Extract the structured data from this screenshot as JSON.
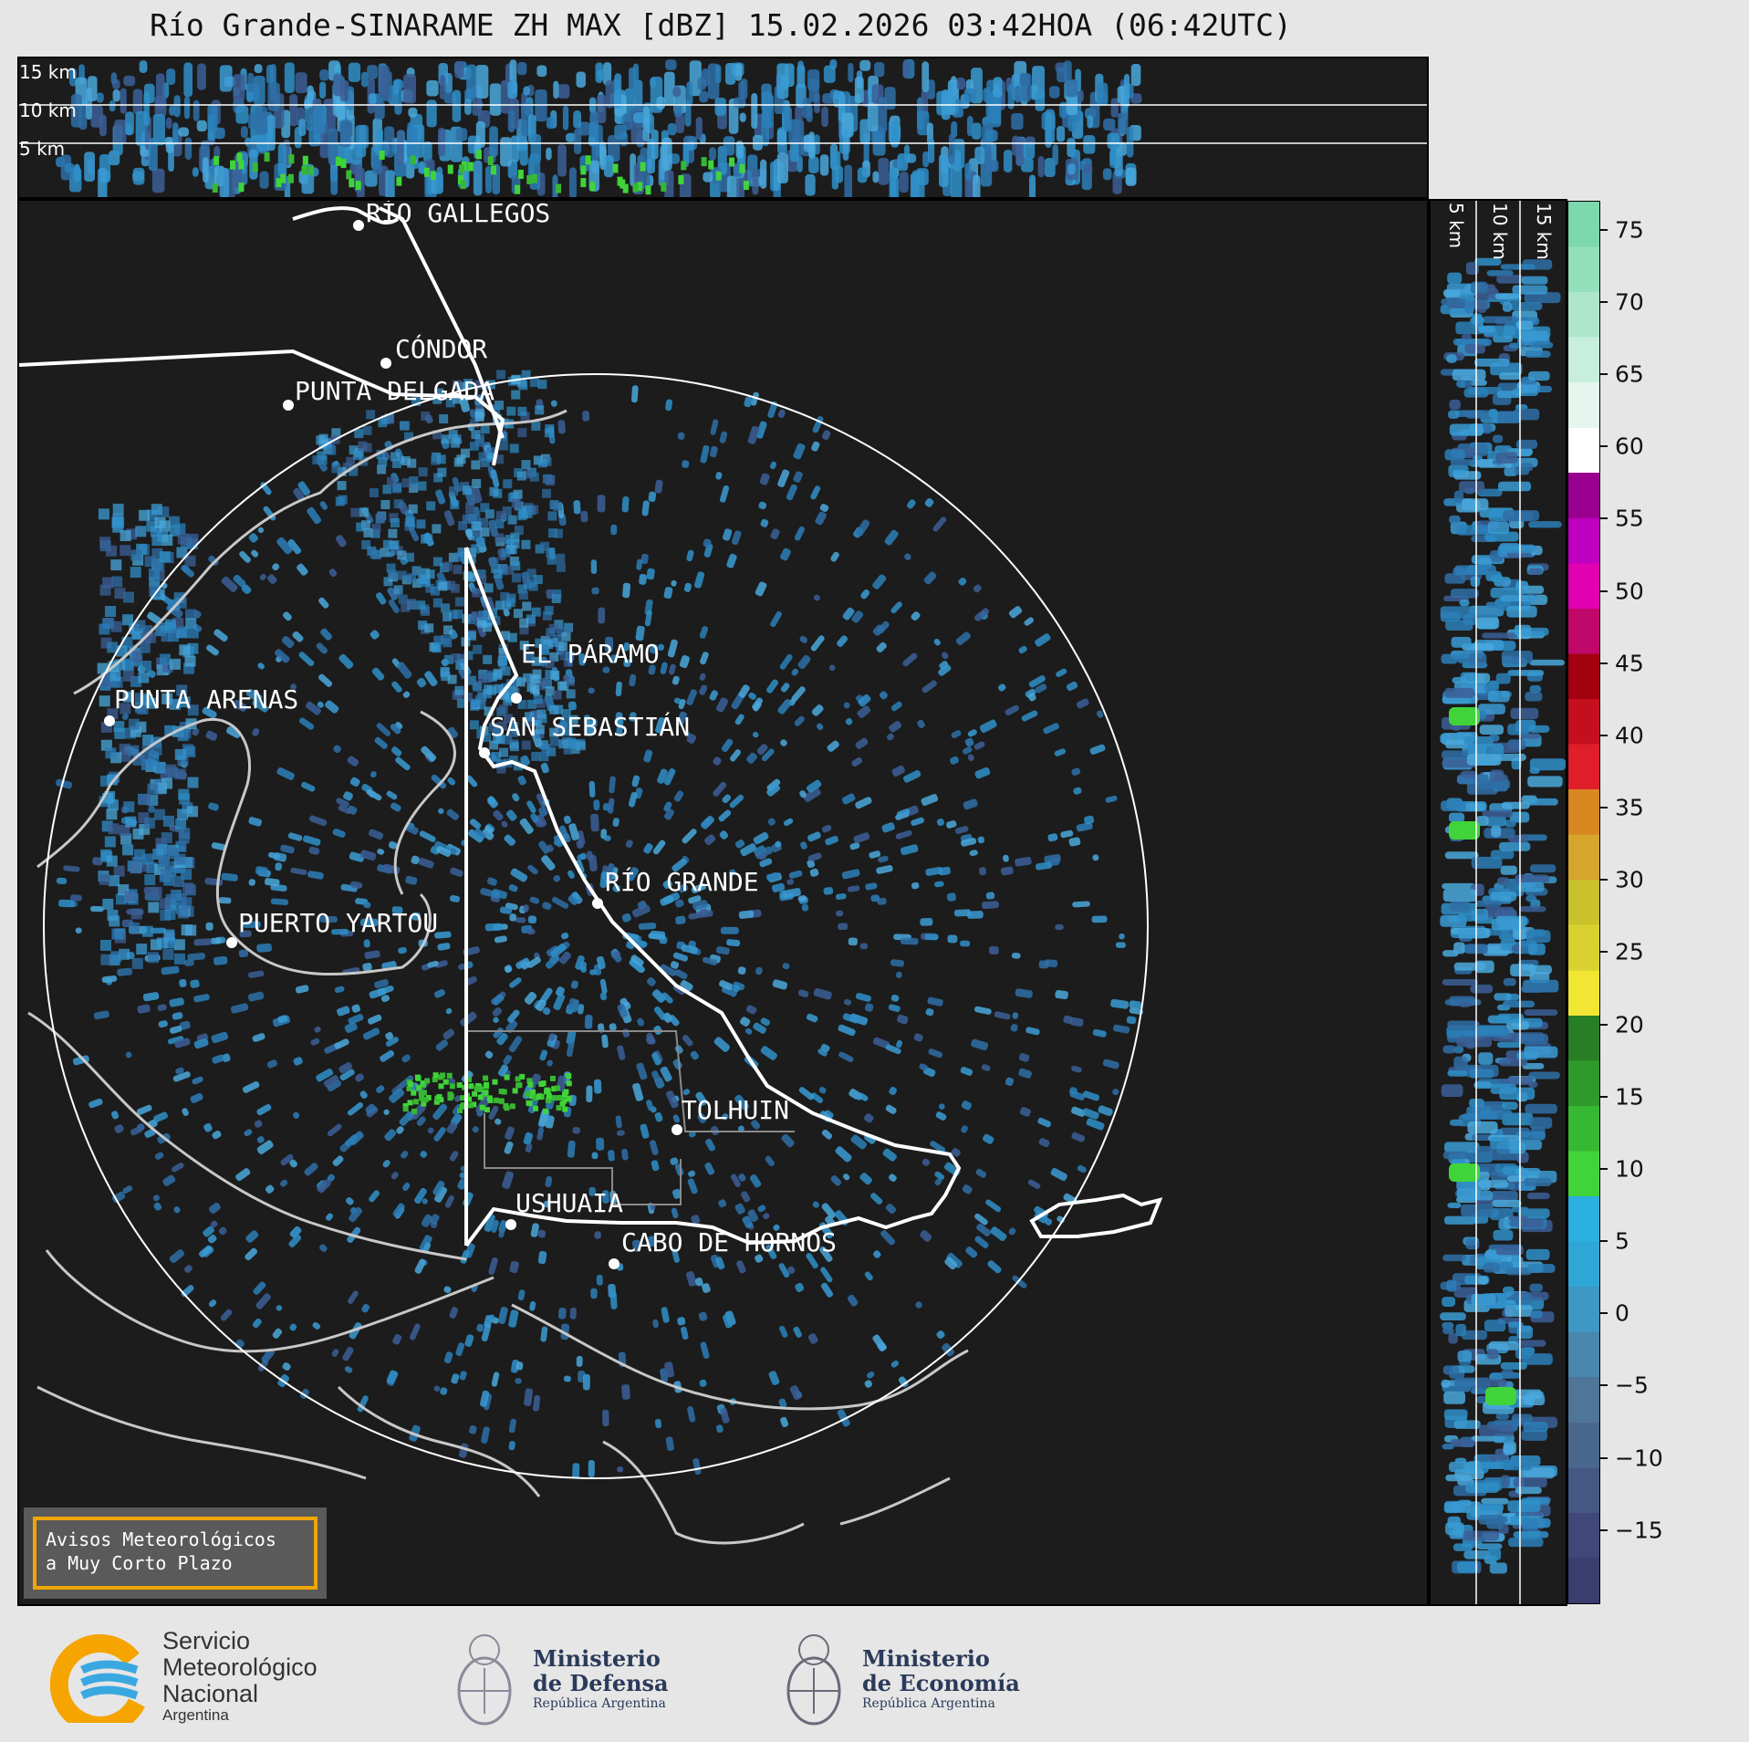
{
  "title": "Río Grande-SINARAME ZH MAX [dBZ] 15.02.2026 03:42HOA (06:42UTC)",
  "top_panel": {
    "altitude_labels": [
      "15 km",
      "10 km",
      "5 km"
    ]
  },
  "side_panel": {
    "altitude_labels": [
      "5 km",
      "10 km",
      "15 km"
    ]
  },
  "colorbar": {
    "unit": "dBZ",
    "ticks": [
      "75",
      "70",
      "65",
      "60",
      "55",
      "50",
      "45",
      "40",
      "35",
      "30",
      "25",
      "20",
      "15",
      "10",
      "5",
      "0",
      "−5",
      "−10",
      "−15"
    ],
    "range": [
      -20,
      77
    ],
    "colors": [
      "#3a3d6e",
      "#3f4878",
      "#455883",
      "#4a678e",
      "#4f7598",
      "#4a86ad",
      "#3f97c4",
      "#2fa7d6",
      "#2bb0e0",
      "#40d43a",
      "#37b832",
      "#2f9a2b",
      "#287e25",
      "#f0e633",
      "#d9d12f",
      "#c9c22a",
      "#d6a52b",
      "#d78821",
      "#e01e2a",
      "#c40f1f",
      "#a30010",
      "#c0086a",
      "#e000b0",
      "#c000c0",
      "#9a0090",
      "#ffffff",
      "#e4f6ee",
      "#c8eedd",
      "#aee6cc",
      "#94dfbc",
      "#7cd8ad"
    ]
  },
  "cities": [
    {
      "name": "RÍO GALLEGOS"
    },
    {
      "name": "CÓNDOR"
    },
    {
      "name": "PUNTA DELGADA"
    },
    {
      "name": "EL PÁRAMO"
    },
    {
      "name": "SAN SEBASTIÁN"
    },
    {
      "name": "PUNTA ARENAS"
    },
    {
      "name": "RÍO GRANDE"
    },
    {
      "name": "PUERTO YARTOU"
    },
    {
      "name": "TOLHUIN"
    },
    {
      "name": "USHUAIA"
    },
    {
      "name": "CABO DE HORNOS"
    }
  ],
  "alert": {
    "line1": "Avisos Meteorológicos",
    "line2": "a Muy Corto Plazo"
  },
  "logos": {
    "smn": {
      "line1": "Servicio",
      "line2": "Meteorológico",
      "line3": "Nacional",
      "line4": "Argentina"
    },
    "defensa": {
      "line1": "Ministerio",
      "line2": "de Defensa",
      "line3": "República Argentina"
    },
    "economia": {
      "line1": "Ministerio",
      "line2": "de Economía",
      "line3": "República Argentina"
    }
  }
}
